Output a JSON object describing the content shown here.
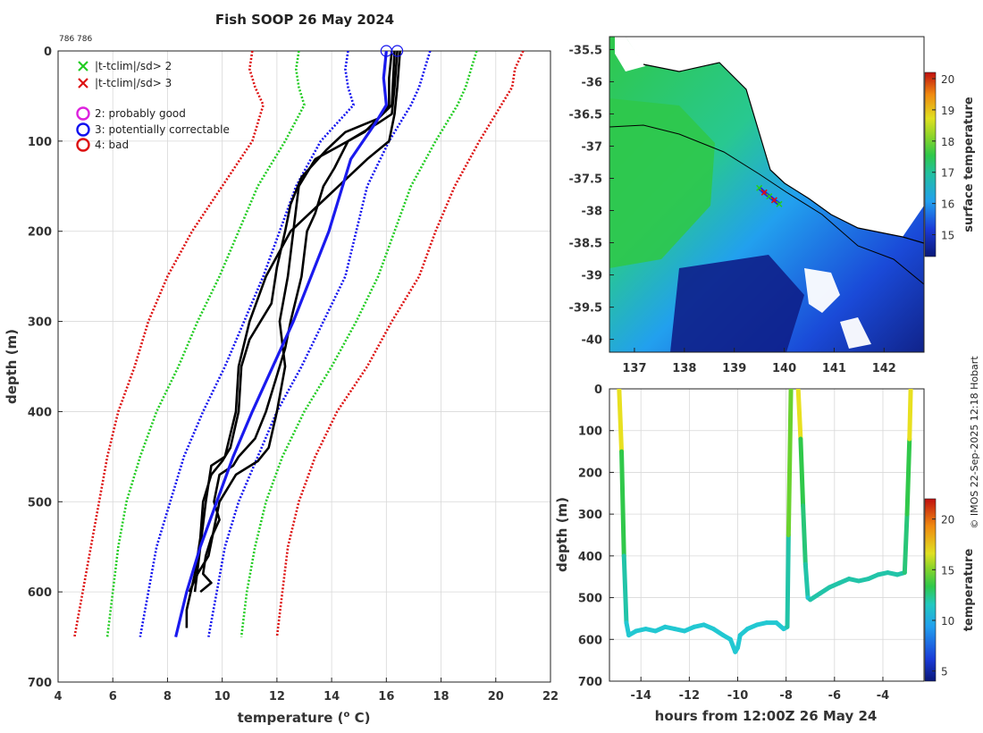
{
  "title": "Fish SOOP 26 May 2024",
  "id_text": "786 786",
  "side_note": "© IMOS 22-Sep-2025 12:18 Hobart",
  "colors": {
    "green": "#22cc22",
    "red": "#dd1111",
    "blue": "#1111ee",
    "magenta": "#dd22dd",
    "profile": "#000000",
    "mean": "#1a1aee"
  },
  "legend": {
    "items": [
      {
        "marker": "x",
        "color": "#22cc22",
        "label": "|t-tclim|/sd> 2"
      },
      {
        "marker": "x",
        "color": "#dd1111",
        "label": "|t-tclim|/sd> 3"
      },
      {
        "marker": "o",
        "color": "#dd22dd",
        "label": "2: probably good"
      },
      {
        "marker": "o",
        "color": "#1111ee",
        "label": "3: potentially correctable"
      },
      {
        "marker": "o",
        "color": "#dd1111",
        "label": "4: bad"
      }
    ]
  },
  "chart_data": [
    {
      "id": "profiles",
      "type": "line",
      "xlabel": "temperature (",
      "xlabel_sup": "o",
      "xlabel_tail": " C)",
      "ylabel": "depth (m)",
      "xlim": [
        4,
        22
      ],
      "ylim": [
        0,
        700
      ],
      "xticks": [
        "4",
        "6",
        "8",
        "10",
        "12",
        "14",
        "16",
        "18",
        "20",
        "22"
      ],
      "yticks": [
        "0",
        "100",
        "200",
        "300",
        "400",
        "500",
        "600",
        "700"
      ],
      "grid": true,
      "climatology": [
        {
          "name": "-3sd",
          "color": "#dd1111",
          "depth": [
            0,
            20,
            40,
            60,
            100,
            150,
            200,
            250,
            300,
            350,
            400,
            450,
            500,
            550,
            600,
            650
          ],
          "temp": [
            11.1,
            11.0,
            11.2,
            11.5,
            11.1,
            10.0,
            8.9,
            8.0,
            7.3,
            6.8,
            6.2,
            5.8,
            5.5,
            5.2,
            4.9,
            4.6
          ]
        },
        {
          "name": "-2sd",
          "color": "#22cc22",
          "depth": [
            0,
            20,
            40,
            60,
            100,
            150,
            200,
            250,
            300,
            350,
            400,
            450,
            500,
            550,
            600,
            650
          ],
          "temp": [
            12.8,
            12.7,
            12.8,
            13.0,
            12.3,
            11.3,
            10.6,
            9.9,
            9.1,
            8.4,
            7.6,
            7.0,
            6.5,
            6.2,
            6.0,
            5.8
          ]
        },
        {
          "name": "-1sd",
          "color": "#1111ee",
          "depth": [
            0,
            20,
            40,
            60,
            100,
            150,
            200,
            250,
            300,
            350,
            400,
            450,
            500,
            550,
            600,
            650
          ],
          "temp": [
            14.6,
            14.5,
            14.6,
            14.8,
            13.6,
            12.7,
            12.1,
            11.5,
            10.8,
            10.1,
            9.3,
            8.6,
            8.1,
            7.6,
            7.3,
            7.0
          ]
        },
        {
          "name": "+1sd",
          "color": "#1111ee",
          "depth": [
            0,
            20,
            40,
            60,
            100,
            150,
            200,
            250,
            300,
            350,
            400,
            450,
            500,
            550,
            600,
            650
          ],
          "temp": [
            17.6,
            17.4,
            17.2,
            16.9,
            16.1,
            15.3,
            14.9,
            14.5,
            13.7,
            12.9,
            12.0,
            11.3,
            10.6,
            10.1,
            9.8,
            9.5
          ]
        },
        {
          "name": "+2sd",
          "color": "#22cc22",
          "depth": [
            0,
            20,
            40,
            60,
            100,
            150,
            200,
            250,
            300,
            350,
            400,
            450,
            500,
            550,
            600,
            650
          ],
          "temp": [
            19.3,
            19.1,
            18.9,
            18.6,
            17.8,
            16.9,
            16.3,
            15.7,
            14.9,
            14.0,
            13.0,
            12.2,
            11.6,
            11.2,
            10.9,
            10.7
          ]
        },
        {
          "name": "+3sd",
          "color": "#dd1111",
          "depth": [
            0,
            20,
            40,
            60,
            100,
            150,
            200,
            250,
            300,
            350,
            400,
            450,
            500,
            550,
            600,
            650
          ],
          "temp": [
            21.0,
            20.7,
            20.6,
            20.2,
            19.4,
            18.5,
            17.8,
            17.2,
            16.2,
            15.3,
            14.2,
            13.4,
            12.8,
            12.4,
            12.2,
            12.0
          ]
        }
      ],
      "profiles": [
        {
          "depth": [
            0,
            40,
            70,
            80,
            100,
            130,
            150,
            180,
            200,
            250,
            300,
            330,
            400,
            430,
            450,
            460,
            470,
            500,
            520,
            540,
            560,
            580,
            590,
            600
          ],
          "temp": [
            16.4,
            16.3,
            16.2,
            15.7,
            14.6,
            14.1,
            13.7,
            13.4,
            13.1,
            12.9,
            12.5,
            12.3,
            11.6,
            11.2,
            10.6,
            10.4,
            9.9,
            9.7,
            9.9,
            9.6,
            9.4,
            9.3,
            9.6,
            9.2
          ]
        },
        {
          "depth": [
            0,
            30,
            60,
            75,
            90,
            110,
            140,
            170,
            200,
            240,
            280,
            300,
            320,
            350,
            400,
            440,
            455,
            470,
            500,
            540,
            580,
            620,
            640
          ],
          "temp": [
            16.2,
            16.1,
            16.1,
            15.7,
            14.5,
            13.8,
            12.9,
            12.5,
            12.3,
            12.0,
            11.8,
            11.4,
            11.0,
            10.7,
            10.6,
            10.3,
            10.0,
            9.6,
            9.3,
            9.2,
            9.0,
            8.7,
            8.7
          ]
        },
        {
          "depth": [
            0,
            40,
            70,
            100,
            120,
            160,
            200,
            250,
            300,
            350,
            400,
            450,
            460,
            500,
            600
          ],
          "temp": [
            16.5,
            16.4,
            16.3,
            16.1,
            15.3,
            13.9,
            12.5,
            11.6,
            11.0,
            10.6,
            10.5,
            10.1,
            9.6,
            9.4,
            9.0
          ]
        },
        {
          "depth": [
            0,
            60,
            90,
            120,
            150,
            200,
            250,
            300,
            350,
            400,
            440,
            455,
            470,
            500,
            560,
            580,
            600
          ],
          "temp": [
            16.3,
            16.2,
            15.2,
            13.4,
            12.8,
            12.6,
            12.4,
            12.1,
            12.3,
            12.0,
            11.7,
            11.3,
            10.5,
            9.9,
            9.5,
            9.1,
            8.8
          ]
        }
      ],
      "mean_profile": {
        "depth": [
          0,
          30,
          60,
          80,
          120,
          200,
          300,
          400,
          450,
          500,
          550,
          600,
          650
        ],
        "temp": [
          16.0,
          15.9,
          16.0,
          15.6,
          14.7,
          13.9,
          12.6,
          11.1,
          10.4,
          9.8,
          9.2,
          8.7,
          8.3
        ]
      },
      "flag_markers": [
        {
          "temp": 16.0,
          "depth": 0,
          "color": "#1111ee"
        },
        {
          "temp": 16.4,
          "depth": 0,
          "color": "#1111ee"
        }
      ]
    },
    {
      "id": "sst_map",
      "type": "heatmap",
      "colorbar_label": "surface temperature",
      "cbar_range": [
        14.3,
        20.2
      ],
      "cbar_ticks": [
        "15",
        "16",
        "17",
        "18",
        "19",
        "20"
      ],
      "xlim": [
        136.5,
        142.8
      ],
      "ylim": [
        -40.2,
        -35.3
      ],
      "xticks": [
        "137",
        "138",
        "139",
        "140",
        "141",
        "142"
      ],
      "yticks": [
        "-35.5",
        "-36",
        "-36.5",
        "-37",
        "-37.5",
        "-38",
        "-38.5",
        "-39",
        "-39.5",
        "-40"
      ],
      "track": {
        "lon": [
          139.5,
          139.6,
          139.7,
          139.8,
          139.9
        ],
        "lat": [
          -37.65,
          -37.72,
          -37.78,
          -37.84,
          -37.9
        ]
      }
    },
    {
      "id": "time_depth",
      "type": "line",
      "xlabel": "hours from 12:00Z 26 May 24",
      "ylabel": "depth (m)",
      "xlim": [
        -15.3,
        -2.3
      ],
      "ylim": [
        0,
        700
      ],
      "xticks": [
        "-14",
        "-12",
        "-10",
        "-8",
        "-6",
        "-4"
      ],
      "yticks": [
        "0",
        "100",
        "200",
        "300",
        "400",
        "500",
        "600",
        "700"
      ],
      "colorbar_label": "temperature",
      "cbar_range": [
        4,
        22
      ],
      "cbar_ticks": [
        "5",
        "10",
        "15",
        "20"
      ],
      "series": [
        {
          "t": [
            -14.9,
            -14.8,
            -14.7,
            -14.6,
            -14.5,
            -14.2,
            -13.8,
            -13.4,
            -13.0,
            -12.6,
            -12.2,
            -11.8,
            -11.4,
            -11.0,
            -10.6,
            -10.3,
            -10.1,
            -10.0,
            -9.9,
            -9.6,
            -9.2,
            -8.8,
            -8.4,
            -8.1,
            -7.95,
            -7.9,
            -7.8
          ],
          "d": [
            0,
            150,
            400,
            560,
            590,
            580,
            575,
            580,
            570,
            575,
            580,
            570,
            565,
            575,
            590,
            600,
            630,
            620,
            590,
            575,
            565,
            560,
            560,
            575,
            570,
            350,
            0
          ]
        },
        {
          "t": [
            -7.5,
            -7.4,
            -7.3,
            -7.2,
            -7.1,
            -7.0,
            -6.6,
            -6.2,
            -5.8,
            -5.4,
            -5.0,
            -4.6,
            -4.2,
            -3.8,
            -3.4,
            -3.1,
            -3.0,
            -2.9,
            -2.85
          ],
          "d": [
            0,
            120,
            280,
            420,
            500,
            505,
            490,
            475,
            465,
            455,
            460,
            455,
            445,
            440,
            445,
            440,
            300,
            120,
            0
          ]
        }
      ]
    }
  ]
}
